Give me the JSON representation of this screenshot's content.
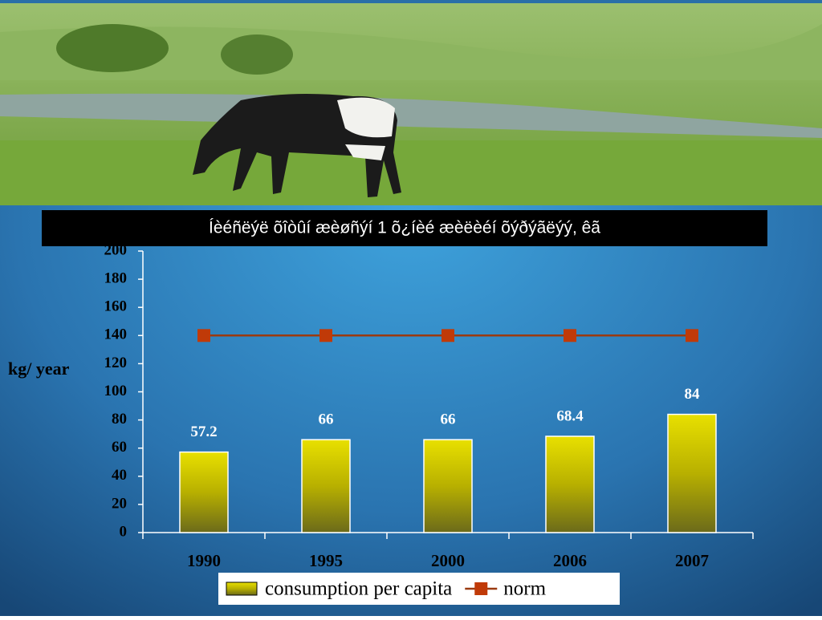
{
  "chart_data": {
    "type": "bar",
    "title": "Íèéñëýë õîòûí æèøñýí 1 õ¿íèé æèëèéí õýðýãëýý, êã",
    "y_label": "kg/ year",
    "categories": [
      "1990",
      "1995",
      "2000",
      "2006",
      "2007"
    ],
    "series": [
      {
        "name": "consumption per capita",
        "type": "bar",
        "color": "#e0d800",
        "values": [
          57.2,
          66,
          66,
          68.4,
          84
        ]
      },
      {
        "name": "norm",
        "type": "line",
        "color": "#c03a08",
        "values": [
          140,
          140,
          140,
          140,
          140
        ]
      }
    ],
    "ylim": [
      0,
      200
    ],
    "yticks": [
      0,
      20,
      40,
      60,
      80,
      100,
      120,
      140,
      160,
      180,
      200
    ],
    "legend": "bottom"
  }
}
